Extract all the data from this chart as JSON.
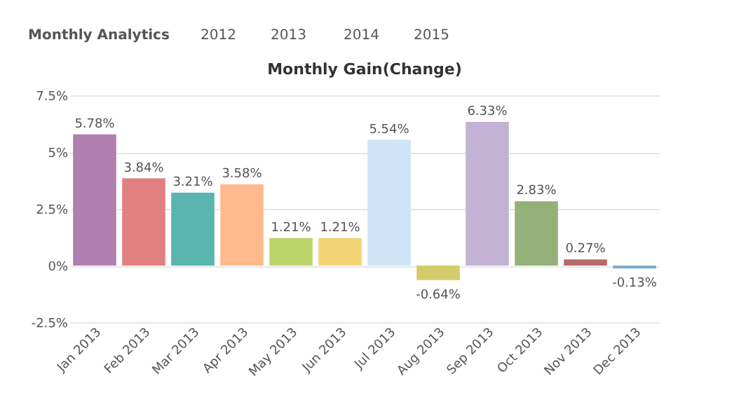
{
  "chart_data": {
    "type": "bar",
    "title": "Monthly Gain(Change)",
    "annotations": [
      "Monthly Analytics",
      "2012",
      "2013",
      "2014",
      "2015"
    ],
    "categories": [
      "Jan 2013",
      "Feb 2013",
      "Mar 2013",
      "Apr 2013",
      "May 2013",
      "Jun 2013",
      "Jul 2013",
      "Aug 2013",
      "Sep 2013",
      "Oct 2013",
      "Nov 2013",
      "Dec 2013"
    ],
    "values": [
      5.78,
      3.84,
      3.21,
      3.58,
      1.21,
      1.21,
      5.54,
      -0.64,
      6.33,
      2.83,
      0.27,
      -0.13
    ],
    "value_labels": [
      "5.78%",
      "3.84%",
      "3.21%",
      "3.58%",
      "1.21%",
      "1.21%",
      "5.54%",
      "-0.64%",
      "6.33%",
      "2.83%",
      "0.27%",
      "-0.13%"
    ],
    "colors": [
      "#b07fb0",
      "#e08080",
      "#5ab5b0",
      "#ffbb8e",
      "#bcd46a",
      "#f2d474",
      "#cfe4f7",
      "#d4cc6a",
      "#c3b2d4",
      "#96b07a",
      "#b86a6a",
      "#78aed0"
    ],
    "ylim": [
      -2.5,
      7.5
    ],
    "yticks": [
      {
        "value": -2.5,
        "label": "-2.5%"
      },
      {
        "value": 0,
        "label": "0%"
      },
      {
        "value": 2.5,
        "label": "2.5%"
      },
      {
        "value": 5,
        "label": "5%"
      },
      {
        "value": 7.5,
        "label": "7.5%"
      }
    ],
    "grid": "y",
    "legend": false
  }
}
